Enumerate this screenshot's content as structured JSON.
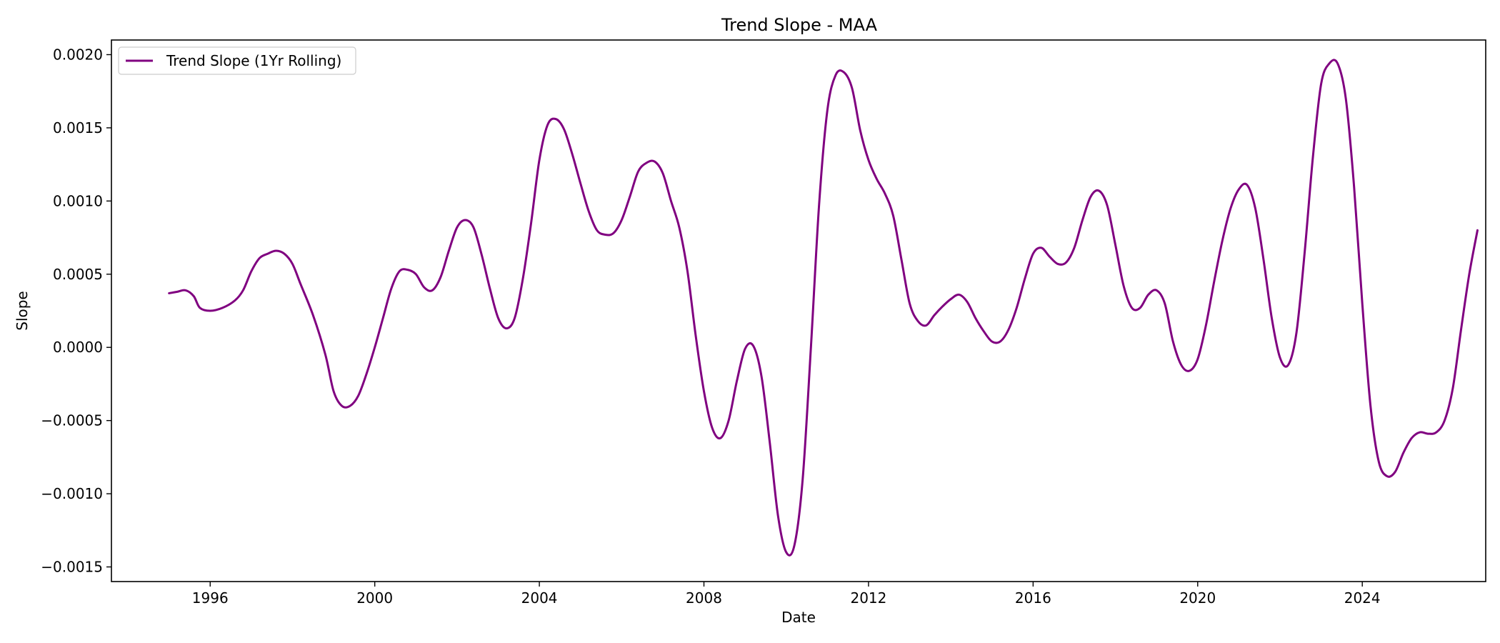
{
  "chart_data": {
    "type": "line",
    "title": "Trend Slope - MAA",
    "xlabel": "Date",
    "ylabel": "Slope",
    "xlim": [
      1993.6,
      2027.0
    ],
    "ylim": [
      -0.0016,
      0.0021
    ],
    "xticks": [
      1996,
      2000,
      2004,
      2008,
      2012,
      2016,
      2020,
      2024
    ],
    "xtick_labels": [
      "1996",
      "2000",
      "2004",
      "2008",
      "2012",
      "2016",
      "2020",
      "2024"
    ],
    "yticks": [
      -0.0015,
      -0.001,
      -0.0005,
      0.0,
      0.0005,
      0.001,
      0.0015,
      0.002
    ],
    "ytick_labels": [
      "−0.0015",
      "−0.0010",
      "−0.0005",
      "0.0000",
      "0.0005",
      "0.0010",
      "0.0015",
      "0.0020"
    ],
    "grid": false,
    "legend_position": "top-left",
    "series": [
      {
        "name": "Trend Slope (1Yr Rolling)",
        "color": "#800080",
        "points": [
          [
            1995.0,
            0.00037
          ],
          [
            1995.2,
            0.00038
          ],
          [
            1995.4,
            0.00039
          ],
          [
            1995.6,
            0.00035
          ],
          [
            1995.75,
            0.00027
          ],
          [
            1996.0,
            0.00025
          ],
          [
            1996.3,
            0.00027
          ],
          [
            1996.6,
            0.00032
          ],
          [
            1996.8,
            0.00039
          ],
          [
            1997.0,
            0.00052
          ],
          [
            1997.2,
            0.00061
          ],
          [
            1997.4,
            0.00064
          ],
          [
            1997.6,
            0.00066
          ],
          [
            1997.8,
            0.00064
          ],
          [
            1998.0,
            0.00057
          ],
          [
            1998.2,
            0.00043
          ],
          [
            1998.5,
            0.00022
          ],
          [
            1998.8,
            -5e-05
          ],
          [
            1999.0,
            -0.0003
          ],
          [
            1999.2,
            -0.0004
          ],
          [
            1999.4,
            -0.0004
          ],
          [
            1999.6,
            -0.00033
          ],
          [
            1999.8,
            -0.00018
          ],
          [
            2000.0,
            0.0
          ],
          [
            2000.2,
            0.0002
          ],
          [
            2000.4,
            0.0004
          ],
          [
            2000.6,
            0.00052
          ],
          [
            2000.8,
            0.00053
          ],
          [
            2001.0,
            0.0005
          ],
          [
            2001.2,
            0.00041
          ],
          [
            2001.4,
            0.00039
          ],
          [
            2001.6,
            0.00048
          ],
          [
            2001.8,
            0.00066
          ],
          [
            2002.0,
            0.00082
          ],
          [
            2002.2,
            0.00087
          ],
          [
            2002.4,
            0.00082
          ],
          [
            2002.6,
            0.00063
          ],
          [
            2002.8,
            0.0004
          ],
          [
            2003.0,
            0.0002
          ],
          [
            2003.2,
            0.00013
          ],
          [
            2003.4,
            0.0002
          ],
          [
            2003.6,
            0.00047
          ],
          [
            2003.8,
            0.00085
          ],
          [
            2004.0,
            0.00128
          ],
          [
            2004.2,
            0.00152
          ],
          [
            2004.4,
            0.00156
          ],
          [
            2004.6,
            0.00149
          ],
          [
            2004.8,
            0.00132
          ],
          [
            2005.0,
            0.00112
          ],
          [
            2005.2,
            0.00093
          ],
          [
            2005.4,
            0.0008
          ],
          [
            2005.6,
            0.00077
          ],
          [
            2005.8,
            0.00078
          ],
          [
            2006.0,
            0.00087
          ],
          [
            2006.2,
            0.00103
          ],
          [
            2006.4,
            0.0012
          ],
          [
            2006.6,
            0.00126
          ],
          [
            2006.8,
            0.00127
          ],
          [
            2007.0,
            0.00119
          ],
          [
            2007.2,
            0.001
          ],
          [
            2007.4,
            0.00082
          ],
          [
            2007.6,
            0.00052
          ],
          [
            2007.8,
            8e-05
          ],
          [
            2008.0,
            -0.0003
          ],
          [
            2008.2,
            -0.00055
          ],
          [
            2008.4,
            -0.00062
          ],
          [
            2008.6,
            -0.0005
          ],
          [
            2008.8,
            -0.00023
          ],
          [
            2009.0,
            -1e-05
          ],
          [
            2009.2,
            1e-05
          ],
          [
            2009.4,
            -0.0002
          ],
          [
            2009.6,
            -0.00065
          ],
          [
            2009.8,
            -0.00115
          ],
          [
            2010.0,
            -0.0014
          ],
          [
            2010.2,
            -0.00135
          ],
          [
            2010.4,
            -0.0009
          ],
          [
            2010.6,
            0.0
          ],
          [
            2010.8,
            0.00098
          ],
          [
            2011.0,
            0.00162
          ],
          [
            2011.2,
            0.00186
          ],
          [
            2011.4,
            0.00188
          ],
          [
            2011.6,
            0.00177
          ],
          [
            2011.8,
            0.00148
          ],
          [
            2012.0,
            0.00128
          ],
          [
            2012.2,
            0.00115
          ],
          [
            2012.4,
            0.00105
          ],
          [
            2012.6,
            0.0009
          ],
          [
            2012.8,
            0.0006
          ],
          [
            2013.0,
            0.0003
          ],
          [
            2013.2,
            0.00018
          ],
          [
            2013.4,
            0.00015
          ],
          [
            2013.6,
            0.00022
          ],
          [
            2013.8,
            0.00028
          ],
          [
            2014.0,
            0.00033
          ],
          [
            2014.2,
            0.00036
          ],
          [
            2014.4,
            0.00031
          ],
          [
            2014.6,
            0.0002
          ],
          [
            2014.8,
            0.00011
          ],
          [
            2015.0,
            4e-05
          ],
          [
            2015.2,
            4e-05
          ],
          [
            2015.4,
            0.00012
          ],
          [
            2015.6,
            0.00027
          ],
          [
            2015.8,
            0.00047
          ],
          [
            2016.0,
            0.00064
          ],
          [
            2016.2,
            0.00068
          ],
          [
            2016.4,
            0.00062
          ],
          [
            2016.6,
            0.00057
          ],
          [
            2016.8,
            0.00058
          ],
          [
            2017.0,
            0.00068
          ],
          [
            2017.2,
            0.00087
          ],
          [
            2017.4,
            0.00103
          ],
          [
            2017.6,
            0.00107
          ],
          [
            2017.8,
            0.00097
          ],
          [
            2018.0,
            0.0007
          ],
          [
            2018.2,
            0.00042
          ],
          [
            2018.4,
            0.00027
          ],
          [
            2018.6,
            0.00027
          ],
          [
            2018.8,
            0.00036
          ],
          [
            2019.0,
            0.00039
          ],
          [
            2019.2,
            0.0003
          ],
          [
            2019.4,
            4e-05
          ],
          [
            2019.6,
            -0.00012
          ],
          [
            2019.8,
            -0.00016
          ],
          [
            2020.0,
            -8e-05
          ],
          [
            2020.2,
            0.00015
          ],
          [
            2020.4,
            0.00045
          ],
          [
            2020.6,
            0.00073
          ],
          [
            2020.8,
            0.00095
          ],
          [
            2021.0,
            0.00108
          ],
          [
            2021.2,
            0.00111
          ],
          [
            2021.4,
            0.00095
          ],
          [
            2021.6,
            0.0006
          ],
          [
            2021.8,
            0.0002
          ],
          [
            2022.0,
            -7e-05
          ],
          [
            2022.2,
            -0.00012
          ],
          [
            2022.4,
            0.0001
          ],
          [
            2022.6,
            0.00065
          ],
          [
            2022.8,
            0.0013
          ],
          [
            2023.0,
            0.0018
          ],
          [
            2023.2,
            0.00194
          ],
          [
            2023.4,
            0.00194
          ],
          [
            2023.6,
            0.0017
          ],
          [
            2023.8,
            0.0011
          ],
          [
            2024.0,
            0.0003
          ],
          [
            2024.2,
            -0.0004
          ],
          [
            2024.4,
            -0.00078
          ],
          [
            2024.6,
            -0.00088
          ],
          [
            2024.8,
            -0.00085
          ],
          [
            2025.0,
            -0.00072
          ],
          [
            2025.2,
            -0.00062
          ],
          [
            2025.4,
            -0.00058
          ],
          [
            2025.6,
            -0.00059
          ],
          [
            2025.8,
            -0.00058
          ],
          [
            2026.0,
            -0.0005
          ],
          [
            2026.2,
            -0.00028
          ],
          [
            2026.4,
            0.00012
          ],
          [
            2026.6,
            0.0005
          ],
          [
            2026.8,
            0.0008
          ]
        ]
      }
    ]
  }
}
